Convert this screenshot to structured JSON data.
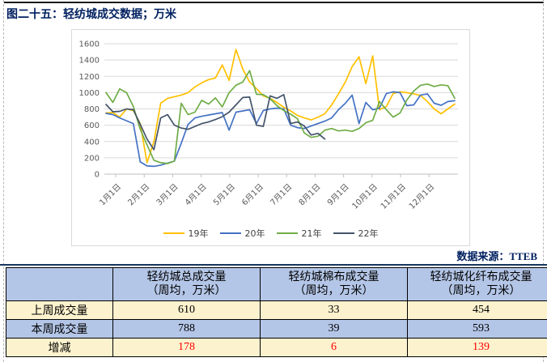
{
  "page": {
    "title": "图二十五：轻纺城成交数据；万米",
    "source_label": "数据来源：TTEB"
  },
  "chart_data": {
    "type": "line",
    "title": "轻纺城成交数据（周均，万米）",
    "x_unit": "week",
    "x_labels": [
      "1月1日",
      "2月1日",
      "3月1日",
      "4月1日",
      "5月1日",
      "6月1日",
      "7月1日",
      "8月1日",
      "9月1日",
      "10月1日",
      "11月1日",
      "12月1日"
    ],
    "y_axis": {
      "min": 0,
      "max": 1600,
      "step": 200,
      "ticks": [
        0,
        200,
        400,
        600,
        800,
        1000,
        1200,
        1400,
        1600
      ]
    },
    "ylim": [
      0,
      1600
    ],
    "grid": true,
    "legend_position": "bottom",
    "series": [
      {
        "name": "19年",
        "color": "#FFC000",
        "values": [
          750,
          755,
          700,
          800,
          780,
          620,
          140,
          400,
          870,
          930,
          950,
          970,
          1000,
          1070,
          1120,
          1160,
          1180,
          1340,
          1150,
          1530,
          1290,
          1130,
          1050,
          960,
          930,
          880,
          820,
          775,
          720,
          690,
          665,
          700,
          740,
          850,
          985,
          1130,
          1320,
          1440,
          1110,
          1450,
          790,
          830,
          990,
          1010,
          1000,
          985,
          965,
          890,
          800,
          740,
          800,
          860
        ]
      },
      {
        "name": "20年",
        "color": "#4472C4",
        "values": [
          745,
          730,
          690,
          655,
          620,
          150,
          100,
          95,
          110,
          135,
          160,
          380,
          610,
          690,
          710,
          725,
          740,
          755,
          540,
          760,
          775,
          790,
          620,
          780,
          800,
          810,
          800,
          600,
          570,
          560,
          590,
          620,
          650,
          690,
          790,
          870,
          970,
          620,
          880,
          790,
          810,
          990,
          1010,
          1000,
          840,
          850,
          970,
          985,
          870,
          845,
          890,
          900
        ]
      },
      {
        "name": "21年",
        "color": "#70AD47",
        "values": [
          1000,
          880,
          1045,
          1000,
          830,
          550,
          360,
          170,
          140,
          130,
          160,
          870,
          730,
          760,
          905,
          860,
          935,
          825,
          1000,
          1090,
          1130,
          1270,
          980,
          975,
          925,
          840,
          780,
          735,
          680,
          505,
          450,
          465,
          540,
          560,
          530,
          540,
          525,
          560,
          630,
          660,
          890,
          790,
          700,
          750,
          910,
          1020,
          1090,
          1105,
          1075,
          1095,
          1085,
          930
        ]
      },
      {
        "name": "22年",
        "color": "#44546A",
        "values": [
          855,
          765,
          770,
          800,
          790,
          610,
          430,
          300,
          690,
          730,
          600,
          565,
          550,
          585,
          620,
          640,
          670,
          705,
          760,
          850,
          940,
          945,
          600,
          585,
          960,
          930,
          975,
          620,
          640,
          590,
          480,
          500,
          430,
          null,
          null,
          null,
          null,
          null,
          null,
          null,
          null,
          null,
          null,
          null,
          null,
          null,
          null,
          null,
          null,
          null,
          null,
          null
        ]
      }
    ]
  },
  "table": {
    "columns": [
      "",
      "轻纺城总成交量\n（周均，万米）",
      "轻纺城棉布成交量\n（周均，万米）",
      "轻纺城化纤布成交量\n（周均，万米）"
    ],
    "rows": [
      {
        "label": "上周成交量",
        "values": [
          "610",
          "33",
          "454"
        ]
      },
      {
        "label": "本周成交量",
        "values": [
          "788",
          "39",
          "593"
        ]
      },
      {
        "label": "增减",
        "values": [
          "178",
          "6",
          "139"
        ]
      }
    ],
    "colors": {
      "header_bg": "#B4C6E7",
      "cream_bg": "#FDF2CE",
      "blue_bg": "#B4C6E7",
      "change_text": "#FF0000"
    }
  }
}
